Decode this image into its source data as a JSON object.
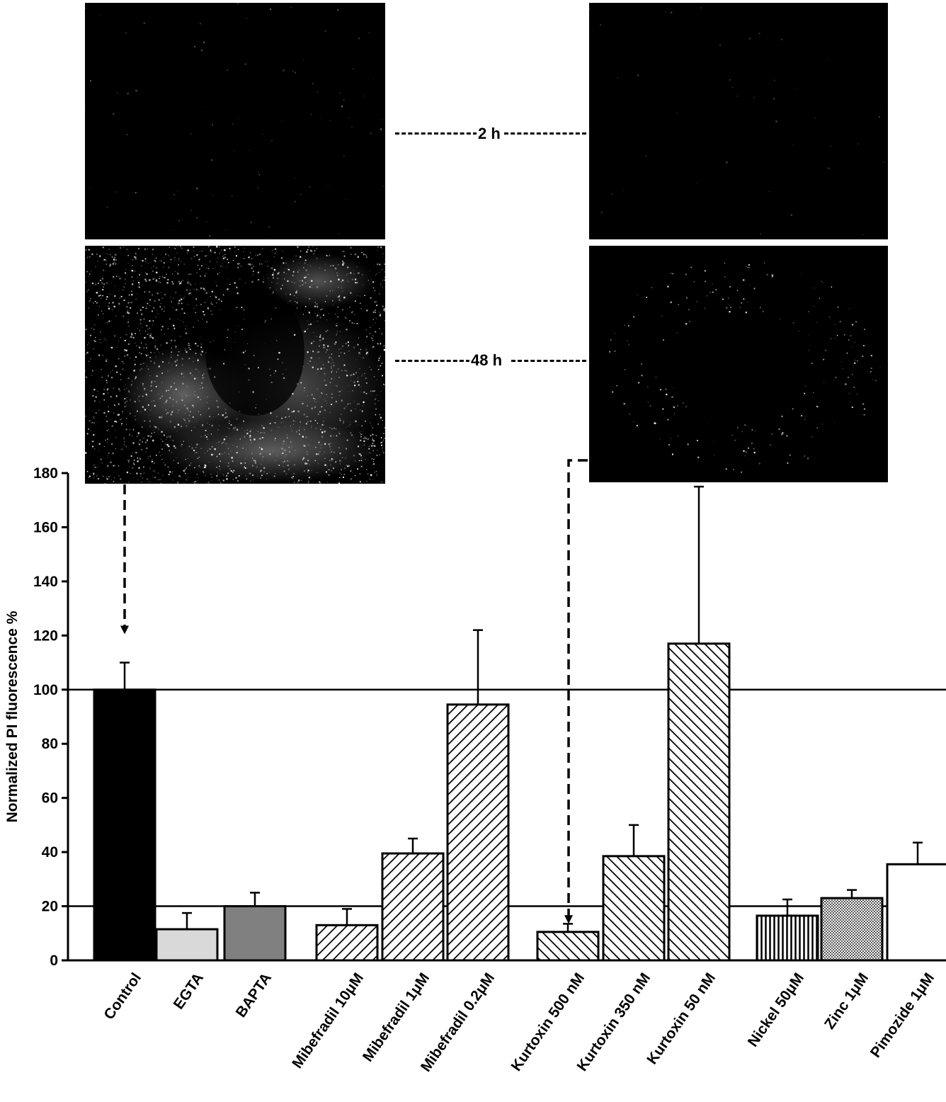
{
  "panels": {
    "row_labels": [
      "2 h",
      "48 h"
    ]
  },
  "colors": {
    "control": "#000000",
    "egta": "#d9d9d9",
    "bapta": "#808080",
    "pimozide": "#ffffff",
    "outline": "#000000"
  },
  "chart_data": {
    "type": "bar",
    "title": "",
    "xlabel": "",
    "ylabel": "Normalized PI fluorescence %",
    "ylim": [
      0,
      180
    ],
    "yticks": [
      0,
      20,
      40,
      60,
      80,
      100,
      120,
      140,
      160,
      180
    ],
    "reference_lines": [
      20,
      100
    ],
    "grid": false,
    "categories": [
      "Control",
      "EGTA",
      "BAPTA",
      "Mibefradil 10μM",
      "Mibefradil 1μM",
      "Mibefradil 0.2μM",
      "Kurtoxin 500 nM",
      "Kurtoxin 350 nM",
      "Kurtoxin 50 nM",
      "Nickel 50μM",
      "Zinc 1μM",
      "Pimozide 1μM"
    ],
    "values": [
      100,
      11.5,
      20,
      13,
      39.5,
      94.5,
      10.5,
      38.5,
      117,
      16.5,
      23,
      35.5
    ],
    "errors": [
      10,
      6,
      5,
      6,
      5.5,
      27.5,
      3,
      11.5,
      58,
      6,
      3,
      8
    ],
    "fill_patterns": [
      "solid-black",
      "solid-light-gray",
      "solid-gray",
      "diagonal-up",
      "diagonal-up",
      "diagonal-up",
      "diagonal-down",
      "diagonal-down",
      "diagonal-down",
      "vertical",
      "checker",
      "white"
    ]
  }
}
